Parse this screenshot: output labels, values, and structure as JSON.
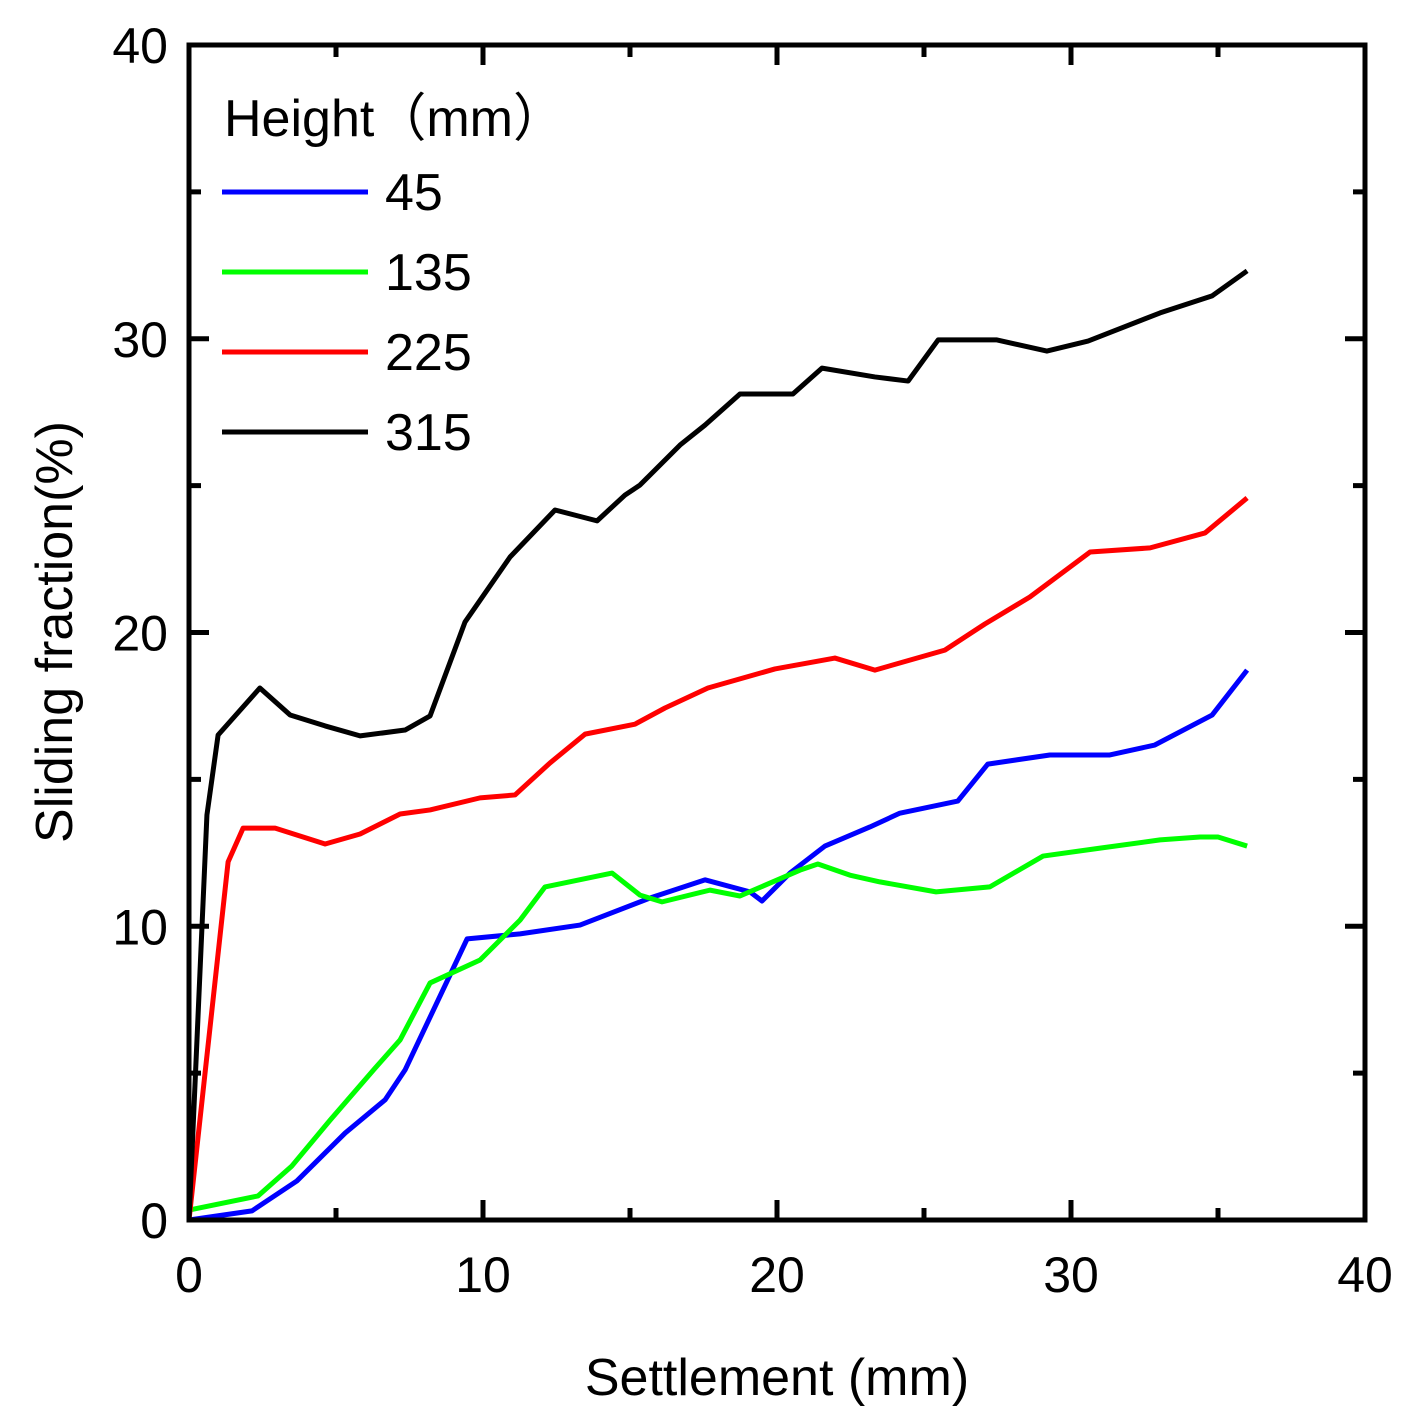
{
  "chart_data": {
    "type": "line",
    "title": "",
    "xlabel": "Settlement (mm)",
    "ylabel": "Sliding fraction(%)",
    "xlim": [
      0,
      40
    ],
    "ylim": [
      0,
      40
    ],
    "xticks": [
      "0",
      "10",
      "20",
      "30",
      "40"
    ],
    "yticks": [
      "0",
      "10",
      "20",
      "30",
      "40"
    ],
    "grid": false,
    "legend": {
      "title": "Height（mm）",
      "placement": "top-left"
    },
    "series": [
      {
        "name": "45",
        "color": "#0000ff",
        "x": [
          0,
          2.14,
          3.67,
          5.31,
          6.67,
          7.35,
          9.46,
          11.26,
          13.3,
          15.68,
          17.55,
          19.08,
          19.49,
          20.44,
          21.63,
          23.16,
          24.18,
          26.15,
          27.17,
          29.28,
          31.32,
          32.85,
          34.8,
          35.99
        ],
        "y": [
          0,
          0.31,
          1.33,
          2.96,
          4.09,
          5.11,
          9.57,
          9.74,
          10.04,
          10.96,
          11.58,
          11.17,
          10.86,
          11.81,
          12.73,
          13.38,
          13.85,
          14.26,
          15.52,
          15.83,
          15.83,
          16.17,
          17.19,
          18.72
        ]
      },
      {
        "name": "135",
        "color": "#00ff00",
        "x": [
          0,
          2.35,
          3.5,
          4.8,
          6.33,
          7.18,
          8.2,
          9.9,
          11.26,
          12.11,
          14.39,
          15.34,
          16.09,
          17.72,
          18.74,
          20.78,
          21.39,
          22.48,
          23.5,
          25.41,
          27.24,
          29.05,
          30.99,
          33.03,
          34.39,
          35.0,
          35.99
        ],
        "y": [
          0.34,
          0.82,
          1.84,
          3.4,
          5.17,
          6.13,
          8.07,
          8.85,
          10.21,
          11.34,
          11.81,
          11.06,
          10.83,
          11.23,
          11.03,
          11.91,
          12.12,
          11.74,
          11.51,
          11.17,
          11.34,
          12.39,
          12.66,
          12.94,
          13.04,
          13.04,
          12.73
        ]
      },
      {
        "name": "225",
        "color": "#ff0000",
        "x": [
          0,
          1.33,
          1.84,
          2.93,
          4.63,
          5.82,
          7.18,
          8.2,
          9.9,
          11.09,
          12.28,
          13.47,
          15.17,
          16.19,
          17.65,
          19.93,
          21.97,
          23.33,
          25.71,
          27.07,
          28.6,
          30.65,
          32.69,
          34.56,
          35.99
        ],
        "y": [
          0,
          12.19,
          13.34,
          13.34,
          12.8,
          13.14,
          13.82,
          13.96,
          14.37,
          14.47,
          15.56,
          16.54,
          16.88,
          17.43,
          18.11,
          18.76,
          19.13,
          18.72,
          19.4,
          20.29,
          21.21,
          22.74,
          22.88,
          23.39,
          24.58
        ]
      },
      {
        "name": "315",
        "color": "#000000",
        "x": [
          0,
          0.61,
          0.99,
          2.41,
          3.44,
          4.63,
          5.82,
          7.35,
          8.2,
          9.39,
          10.92,
          12.45,
          13.88,
          14.83,
          15.34,
          16.7,
          17.55,
          18.74,
          20.54,
          21.53,
          23.33,
          24.46,
          25.48,
          27.48,
          29.18,
          30.58,
          33.03,
          34.8,
          35.99
        ],
        "y": [
          0,
          13.79,
          16.51,
          18.11,
          17.19,
          16.82,
          16.48,
          16.68,
          17.16,
          20.36,
          22.57,
          24.17,
          23.8,
          24.68,
          25.02,
          26.38,
          27.06,
          28.12,
          28.12,
          29.0,
          28.7,
          28.56,
          29.96,
          29.96,
          29.58,
          29.92,
          30.88,
          31.46,
          32.31
        ]
      }
    ]
  }
}
